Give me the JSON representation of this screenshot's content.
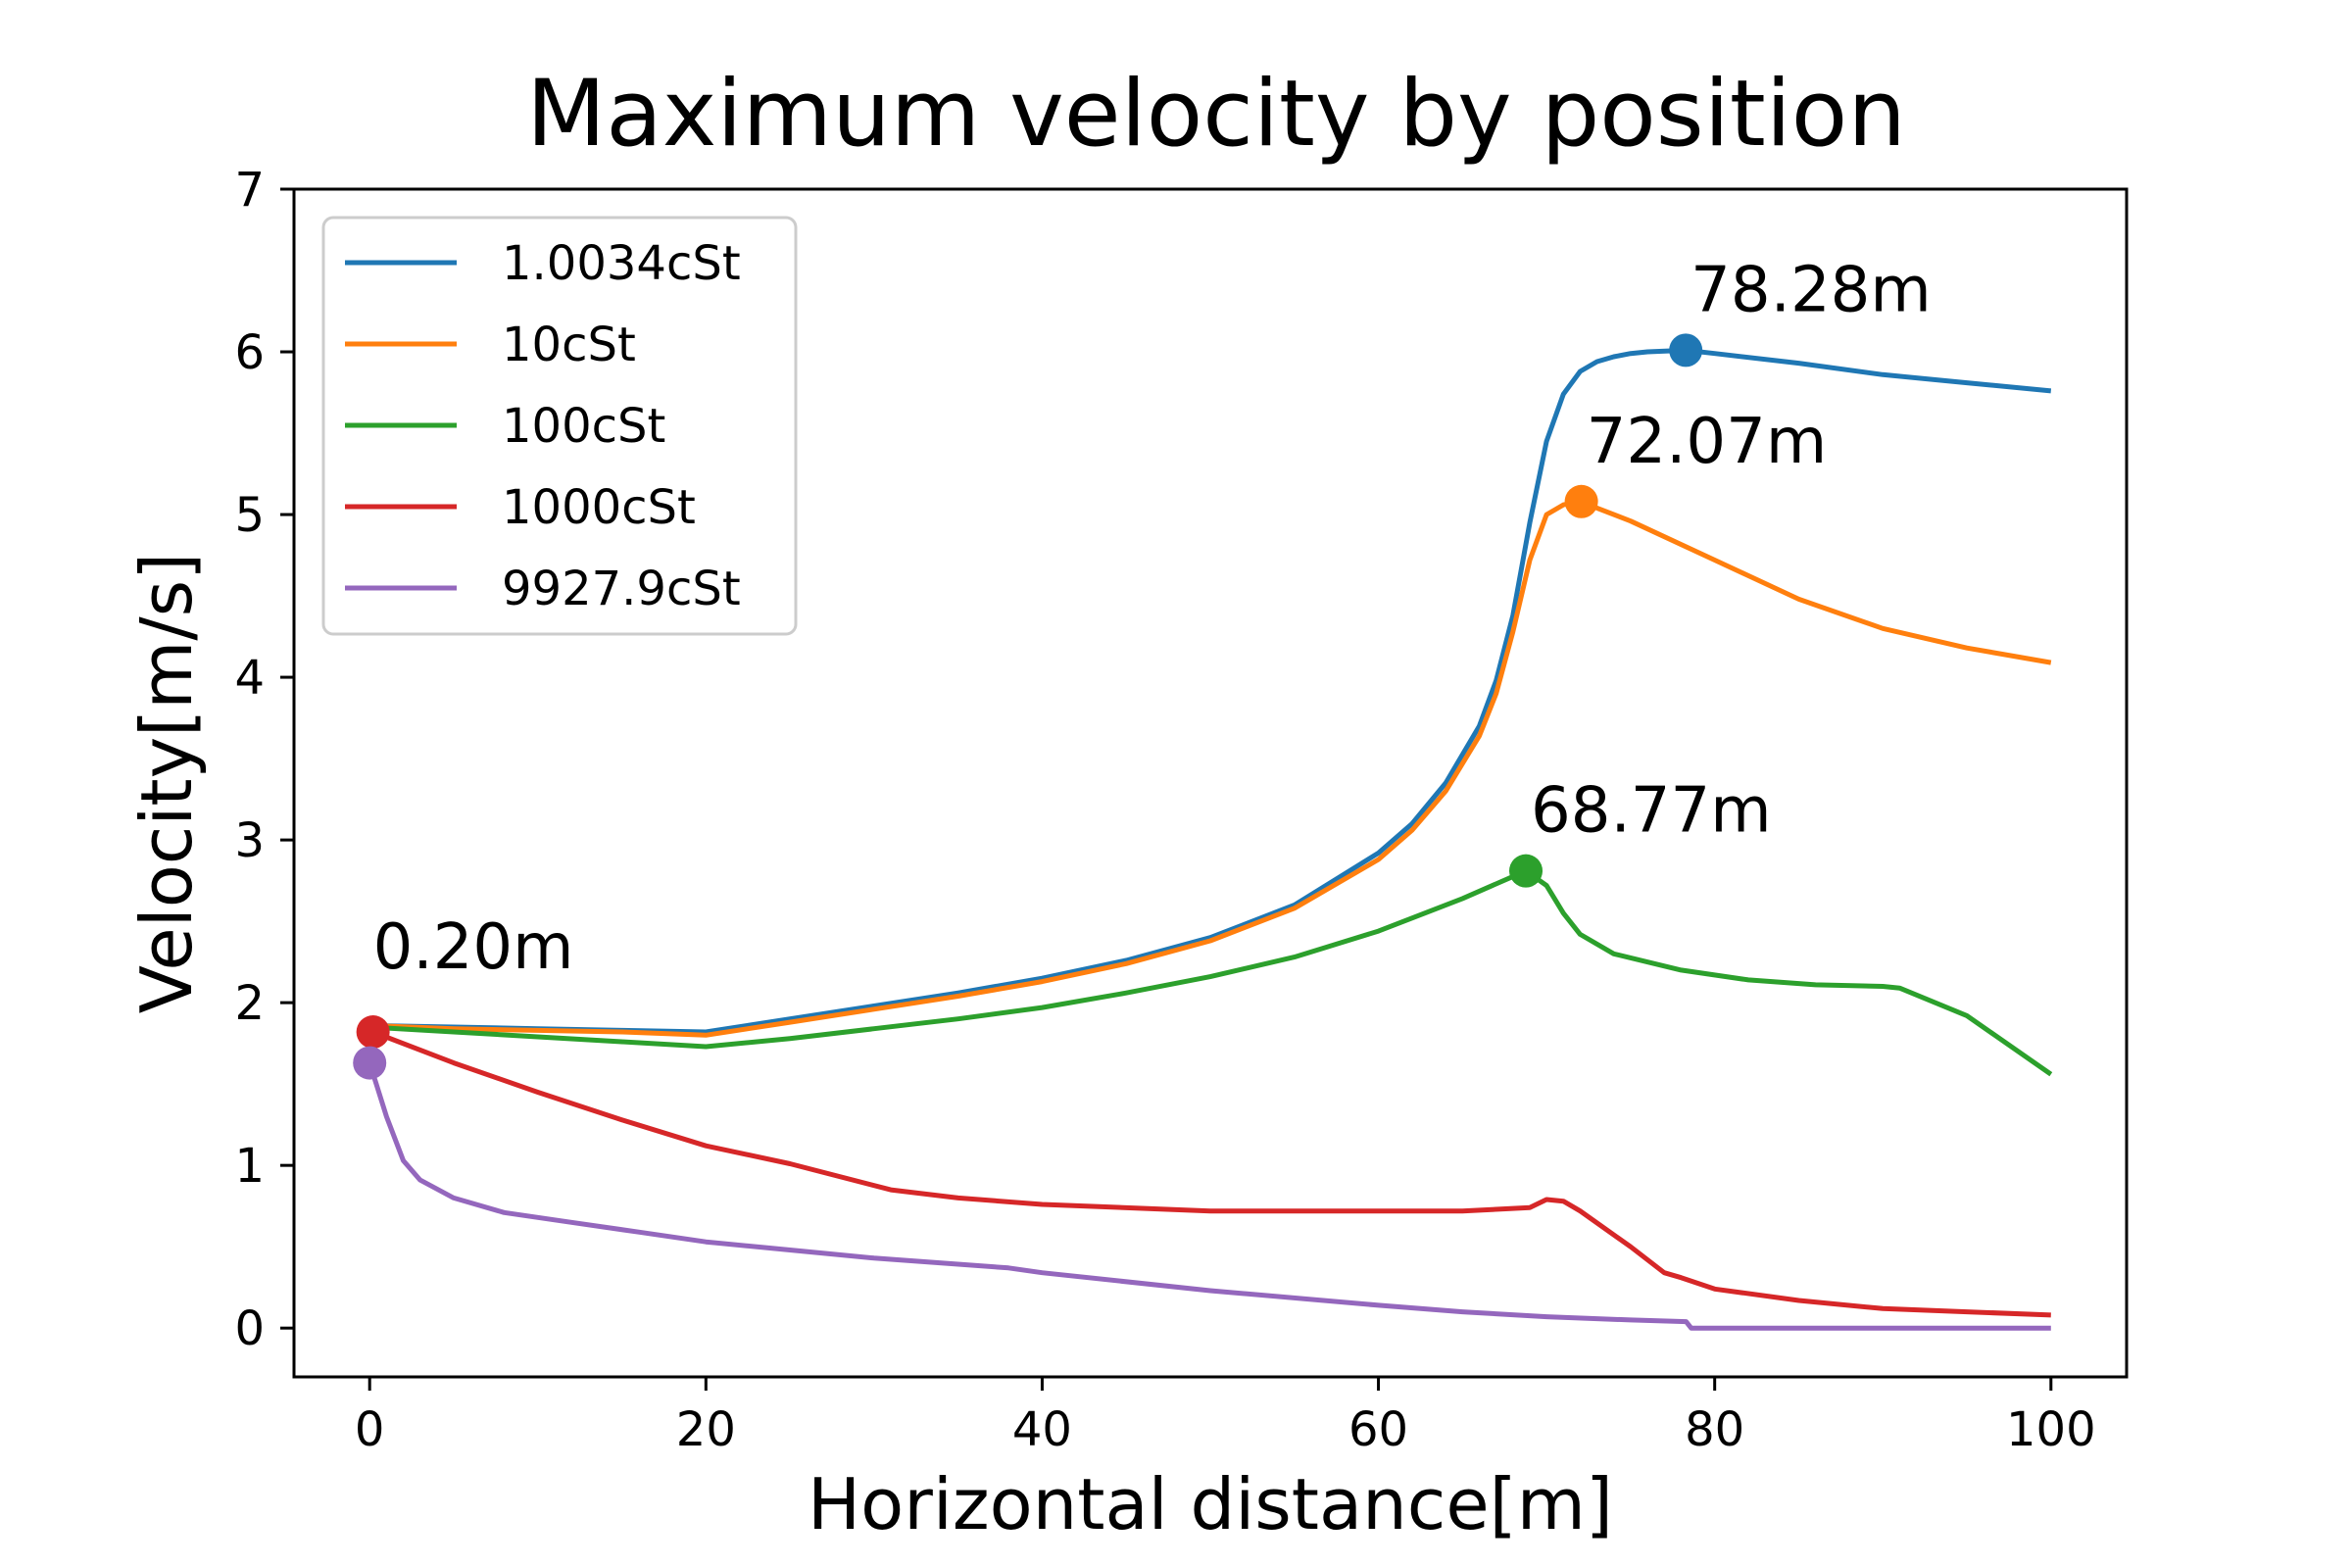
{
  "chart_data": {
    "type": "line",
    "title": "Maximum velocity by position",
    "xlabel": "Horizontal distance[m]",
    "ylabel": "Velocity[m/s]",
    "xlim": [
      -4.5,
      104.5
    ],
    "ylim": [
      -0.3,
      7
    ],
    "xticks": [
      0,
      20,
      40,
      60,
      80,
      100
    ],
    "yticks": [
      0,
      1,
      2,
      3,
      4,
      5,
      6,
      7
    ],
    "legend_position": "top-left",
    "grid": false,
    "series": [
      {
        "name": "1.0034cSt",
        "color": "#1f77b4",
        "x": [
          0,
          5,
          10,
          15,
          20,
          25,
          30,
          35,
          40,
          45,
          50,
          55,
          60,
          62,
          64,
          66,
          67,
          68,
          69,
          70,
          71,
          72,
          73,
          74,
          75,
          76,
          78.28,
          80,
          85,
          90,
          95,
          100
        ],
        "y": [
          1.86,
          1.85,
          1.84,
          1.83,
          1.82,
          1.9,
          1.98,
          2.06,
          2.15,
          2.26,
          2.4,
          2.6,
          2.92,
          3.1,
          3.35,
          3.7,
          3.98,
          4.38,
          4.95,
          5.45,
          5.74,
          5.88,
          5.94,
          5.97,
          5.99,
          6.0,
          6.01,
          5.99,
          5.93,
          5.86,
          5.81,
          5.76
        ]
      },
      {
        "name": "10cSt",
        "color": "#ff7f0e",
        "x": [
          0,
          5,
          10,
          15,
          20,
          25,
          30,
          35,
          40,
          45,
          50,
          55,
          60,
          62,
          64,
          66,
          67,
          68,
          69,
          70,
          71,
          72.07,
          73,
          75,
          80,
          85,
          90,
          95,
          100
        ],
        "y": [
          1.86,
          1.84,
          1.83,
          1.82,
          1.8,
          1.88,
          1.96,
          2.04,
          2.13,
          2.24,
          2.38,
          2.58,
          2.88,
          3.06,
          3.3,
          3.64,
          3.9,
          4.28,
          4.72,
          5.0,
          5.06,
          5.08,
          5.04,
          4.96,
          4.72,
          4.48,
          4.3,
          4.18,
          4.09
        ]
      },
      {
        "name": "100cSt",
        "color": "#2ca02c",
        "x": [
          0,
          5,
          10,
          15,
          20,
          25,
          30,
          35,
          40,
          45,
          50,
          55,
          60,
          65,
          68.77,
          70,
          71,
          72,
          74,
          78,
          82,
          86,
          90,
          91,
          95,
          100
        ],
        "y": [
          1.85,
          1.82,
          1.79,
          1.76,
          1.73,
          1.78,
          1.84,
          1.9,
          1.97,
          2.06,
          2.16,
          2.28,
          2.44,
          2.64,
          2.81,
          2.72,
          2.55,
          2.42,
          2.3,
          2.2,
          2.14,
          2.11,
          2.1,
          2.09,
          1.92,
          1.56
        ]
      },
      {
        "name": "1000cSt",
        "color": "#d62728",
        "x": [
          0.2,
          5,
          10,
          15,
          20,
          25,
          31,
          35,
          40,
          50,
          60,
          65,
          69,
          70,
          71,
          72,
          75,
          77,
          78,
          80,
          85,
          90,
          95,
          100
        ],
        "y": [
          1.82,
          1.63,
          1.45,
          1.28,
          1.12,
          1.01,
          0.85,
          0.8,
          0.76,
          0.72,
          0.72,
          0.72,
          0.74,
          0.79,
          0.78,
          0.72,
          0.5,
          0.34,
          0.31,
          0.24,
          0.17,
          0.12,
          0.1,
          0.08
        ]
      },
      {
        "name": "9927.9cSt",
        "color": "#9467bd",
        "x": [
          0,
          1,
          2,
          3,
          5,
          8,
          12,
          16,
          20,
          25,
          30,
          38,
          40,
          50,
          60,
          65,
          70,
          75,
          78.3,
          78.6,
          80,
          90,
          100
        ],
        "y": [
          1.63,
          1.3,
          1.03,
          0.91,
          0.8,
          0.71,
          0.65,
          0.59,
          0.53,
          0.48,
          0.43,
          0.37,
          0.34,
          0.23,
          0.14,
          0.1,
          0.07,
          0.05,
          0.04,
          0.0,
          0.0,
          0.0,
          0.0
        ]
      }
    ],
    "markers": [
      {
        "x": 78.28,
        "y": 6.01,
        "color": "#1f77b4",
        "label": "78.28m"
      },
      {
        "x": 72.07,
        "y": 5.08,
        "color": "#ff7f0e",
        "label": "72.07m"
      },
      {
        "x": 68.77,
        "y": 2.81,
        "color": "#2ca02c",
        "label": "68.77m"
      },
      {
        "x": 0.2,
        "y": 1.82,
        "color": "#d62728",
        "label": "0.20m"
      },
      {
        "x": 0.0,
        "y": 1.63,
        "color": "#9467bd",
        "label": ""
      }
    ]
  }
}
